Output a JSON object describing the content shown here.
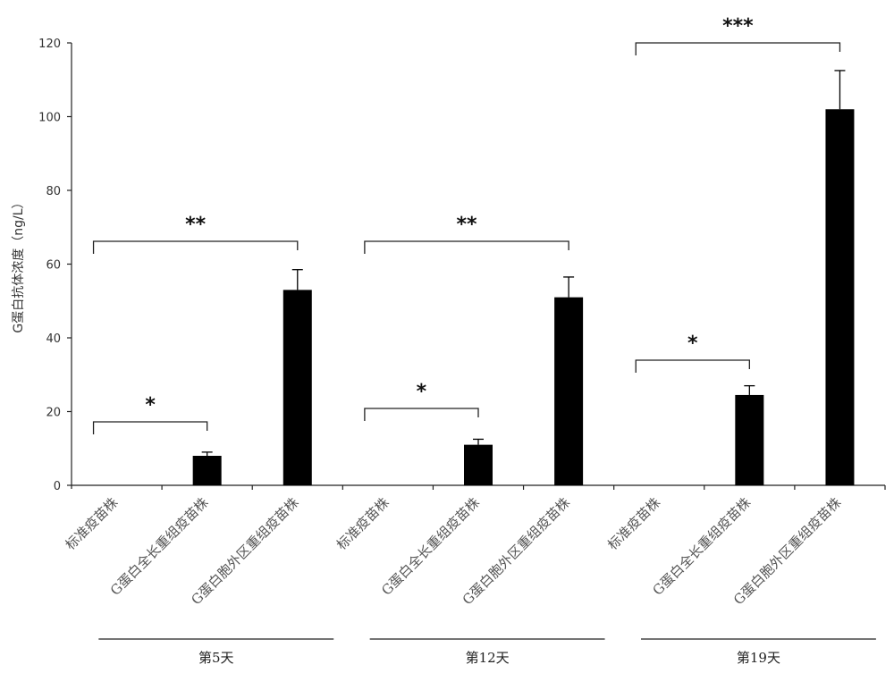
{
  "chart_data": {
    "type": "bar",
    "ylabel": "G蛋白抗体浓度（ng/L）",
    "ylim": [
      0,
      120
    ],
    "yticks": [
      "0",
      "20",
      "40",
      "60",
      "80",
      "100",
      "120"
    ],
    "grid": false,
    "groups": [
      {
        "label": "第5天",
        "bars": [
          {
            "category": "标准疫苗株",
            "value": 0,
            "error": 0
          },
          {
            "category": "G蛋白全长重组疫苗株",
            "value": 8,
            "error": 1
          },
          {
            "category": "G蛋白胞外区重组疫苗株",
            "value": 53,
            "error": 5.5
          }
        ]
      },
      {
        "label": "第12天",
        "bars": [
          {
            "category": "标准疫苗株",
            "value": 0,
            "error": 0
          },
          {
            "category": "G蛋白全长重组疫苗株",
            "value": 11,
            "error": 1.5
          },
          {
            "category": "G蛋白胞外区重组疫苗株",
            "value": 51,
            "error": 5.5
          }
        ]
      },
      {
        "label": "第19天",
        "bars": [
          {
            "category": "标准疫苗株",
            "value": 0,
            "error": 0
          },
          {
            "category": "G蛋白全长重组疫苗株",
            "value": 24.5,
            "error": 2.5
          },
          {
            "category": "G蛋白胞外区重组疫苗株",
            "value": 102,
            "error": 10.5
          }
        ]
      }
    ],
    "significance": [
      {
        "group": 0,
        "from": 0,
        "to": 1,
        "label": "*"
      },
      {
        "group": 0,
        "from": 0,
        "to": 2,
        "label": "**"
      },
      {
        "group": 1,
        "from": 0,
        "to": 1,
        "label": "*"
      },
      {
        "group": 1,
        "from": 0,
        "to": 2,
        "label": "**"
      },
      {
        "group": 2,
        "from": 0,
        "to": 1,
        "label": "*"
      },
      {
        "group": 2,
        "from": 0,
        "to": 2,
        "label": "***"
      }
    ]
  }
}
